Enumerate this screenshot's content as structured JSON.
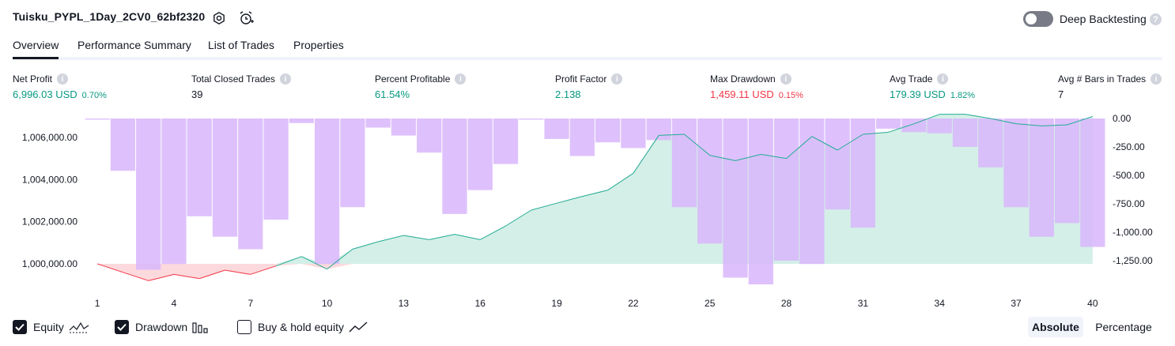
{
  "header": {
    "strategy_name": "Tuisku_PYPL_1Day_2CV0_62bf2320",
    "settings_icon": "gear-icon",
    "alert_icon": "alarm-clock-plus-icon",
    "deep_backtesting_label": "Deep Backtesting",
    "deep_backtesting_on": false,
    "help_glyph": "?"
  },
  "tabs": [
    {
      "label": "Overview",
      "active": true
    },
    {
      "label": "Performance Summary",
      "active": false
    },
    {
      "label": "List of Trades",
      "active": false
    },
    {
      "label": "Properties",
      "active": false
    }
  ],
  "metrics": [
    {
      "label": "Net Profit",
      "value": "6,996.03 USD",
      "pct": "0.70%",
      "tone": "green"
    },
    {
      "label": "Total Closed Trades",
      "value": "39",
      "pct": "",
      "tone": "dark"
    },
    {
      "label": "Percent Profitable",
      "value": "61.54%",
      "pct": "",
      "tone": "green"
    },
    {
      "label": "Profit Factor",
      "value": "2.138",
      "pct": "",
      "tone": "green"
    },
    {
      "label": "Max Drawdown",
      "value": "1,459.11 USD",
      "pct": "0.15%",
      "tone": "red"
    },
    {
      "label": "Avg Trade",
      "value": "179.39 USD",
      "pct": "1.82%",
      "tone": "green"
    },
    {
      "label": "Avg # Bars in Trades",
      "value": "7",
      "pct": "",
      "tone": "dark"
    }
  ],
  "colors": {
    "profit": "#089981",
    "loss": "#f23645",
    "drawdown_bar": "#d8b6fb",
    "equity_fill": "#d4efe7",
    "equity_line": "#22ab94",
    "accent": "#131722"
  },
  "chart_data": {
    "type": "bar",
    "x": [
      1,
      2,
      3,
      4,
      5,
      6,
      7,
      8,
      9,
      10,
      11,
      12,
      13,
      14,
      15,
      16,
      17,
      18,
      19,
      20,
      21,
      22,
      23,
      24,
      25,
      26,
      27,
      28,
      29,
      30,
      31,
      32,
      33,
      34,
      35,
      36,
      37,
      38,
      39,
      40
    ],
    "x_tick_labels": [
      "1",
      "4",
      "7",
      "10",
      "13",
      "16",
      "19",
      "22",
      "25",
      "28",
      "31",
      "34",
      "37",
      "40"
    ],
    "x_ticks": [
      1,
      4,
      7,
      10,
      13,
      16,
      19,
      22,
      25,
      28,
      31,
      34,
      37,
      40
    ],
    "left_axis": {
      "ticks": [
        1000000,
        1002000,
        1004000,
        1006000
      ],
      "tick_labels": [
        "1,000,000.00",
        "1,002,000.00",
        "1,004,000.00",
        "1,006,000.00"
      ],
      "ylim": [
        998800,
        1007200
      ]
    },
    "right_axis": {
      "ticks": [
        0,
        -250,
        -500,
        -750,
        -1000,
        -1250
      ],
      "tick_labels": [
        "0.00",
        "-250.00",
        "-500.00",
        "-750.00",
        "-1,000.00",
        "-1,250.00"
      ],
      "ylim": [
        -1459.11,
        0
      ]
    },
    "series": [
      {
        "name": "Equity",
        "baseline": 1000000,
        "values": [
          1000000,
          999600,
          999200,
          999500,
          999300,
          999700,
          999500,
          999900,
          1000350,
          999750,
          1000700,
          1001050,
          1001350,
          1001150,
          1001400,
          1001150,
          1001800,
          1002550,
          1002880,
          1003200,
          1003500,
          1004300,
          1006100,
          1006150,
          1005150,
          1004900,
          1005200,
          1005000,
          1006050,
          1005400,
          1006150,
          1006250,
          1006650,
          1007100,
          1007100,
          1006900,
          1006650,
          1006550,
          1006600,
          1006996.03
        ]
      },
      {
        "name": "Drawdown",
        "values": [
          -10,
          -460,
          -1330,
          -1280,
          -860,
          -1040,
          -1150,
          -890,
          -40,
          -1280,
          -780,
          -80,
          -150,
          -300,
          -840,
          -630,
          -400,
          -10,
          -180,
          -330,
          -210,
          -260,
          -190,
          -780,
          -1100,
          -1400,
          -1459.11,
          -1250,
          -1280,
          -800,
          -960,
          -90,
          -120,
          -130,
          -250,
          -430,
          -780,
          -1040,
          -920,
          -1130
        ]
      }
    ]
  },
  "legend": [
    {
      "label": "Equity",
      "checked": true,
      "icon": "equity-line-icon"
    },
    {
      "label": "Drawdown",
      "checked": true,
      "icon": "bar-chart-icon"
    },
    {
      "label": "Buy & hold equity",
      "checked": false,
      "icon": "line-chart-icon"
    }
  ],
  "view_mode": {
    "options": [
      "Absolute",
      "Percentage"
    ],
    "selected": "Absolute"
  }
}
